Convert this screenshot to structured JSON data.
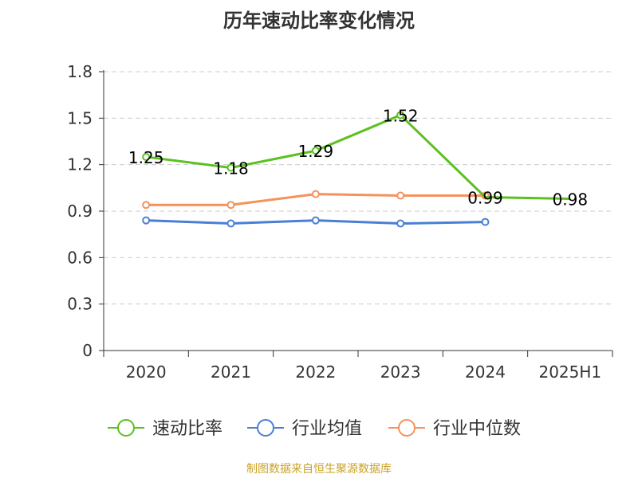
{
  "chart_data": {
    "type": "line",
    "title": "历年速动比率变化情况",
    "categories": [
      "2020",
      "2021",
      "2022",
      "2023",
      "2024",
      "2025H1"
    ],
    "ylim": [
      0,
      1.8
    ],
    "yticks": [
      "0",
      "0.3",
      "0.6",
      "0.9",
      "1.2",
      "1.5",
      "1.8"
    ],
    "grid": true,
    "legend_position": "bottom",
    "series": [
      {
        "name": "速动比率",
        "color": "#5cc020",
        "values": [
          1.25,
          1.18,
          1.29,
          1.52,
          0.99,
          0.98
        ],
        "labels": [
          "1.25",
          "1.18",
          "1.29",
          "1.52",
          "0.99",
          "0.98"
        ]
      },
      {
        "name": "行业均值",
        "color": "#4a7fd6",
        "values": [
          0.84,
          0.82,
          0.84,
          0.82,
          0.83,
          null
        ]
      },
      {
        "name": "行业中位数",
        "color": "#f5925b",
        "values": [
          0.94,
          0.94,
          1.01,
          1.0,
          1.0,
          null
        ]
      }
    ]
  },
  "source": "制图数据来自恒生聚源数据库"
}
